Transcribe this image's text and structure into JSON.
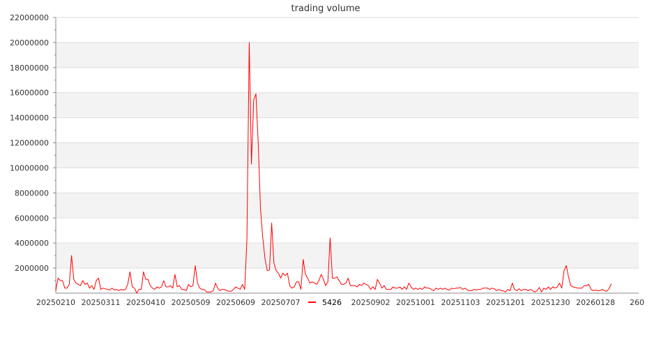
{
  "chart_data": {
    "type": "line",
    "title": "trading volume",
    "xlabel": "",
    "ylabel": "",
    "ylim": [
      0,
      22000000
    ],
    "y_ticks": [
      "2000000",
      "4000000",
      "6000000",
      "8000000",
      "10000000",
      "12000000",
      "14000000",
      "16000000",
      "18000000",
      "20000000",
      "22000000"
    ],
    "y_tick_values": [
      2000000,
      4000000,
      6000000,
      8000000,
      10000000,
      12000000,
      14000000,
      16000000,
      18000000,
      20000000,
      22000000
    ],
    "x_ticks": [
      {
        "index": 0,
        "label": "20250210"
      },
      {
        "index": 20,
        "label": "20250311"
      },
      {
        "index": 40,
        "label": "20250410"
      },
      {
        "index": 60,
        "label": "20250509"
      },
      {
        "index": 80,
        "label": "20250609"
      },
      {
        "index": 100,
        "label": "20250707"
      },
      {
        "index": 140,
        "label": "20250902"
      },
      {
        "index": 160,
        "label": "20251001"
      },
      {
        "index": 180,
        "label": "20251103"
      },
      {
        "index": 200,
        "label": "20251201"
      },
      {
        "index": 220,
        "label": "20251230"
      },
      {
        "index": 240,
        "label": "20260128"
      },
      {
        "index": 260,
        "label": "260"
      }
    ],
    "x_range": [
      0,
      259
    ],
    "grid": true,
    "band_colors": [
      "#ffffff",
      "#f3f3f3"
    ],
    "legend": {
      "position": "bottom-center",
      "entries": [
        {
          "label": "5426",
          "color": "#ff0000"
        }
      ]
    },
    "series": [
      {
        "name": "5426",
        "color": "#ff0000",
        "values": [
          200000,
          1200000,
          1000000,
          1000000,
          400000,
          400000,
          700000,
          3000000,
          1100000,
          800000,
          700000,
          600000,
          1000000,
          700000,
          800000,
          400000,
          600000,
          300000,
          1000000,
          1200000,
          300000,
          400000,
          350000,
          300000,
          250000,
          400000,
          250000,
          300000,
          200000,
          300000,
          250000,
          300000,
          700000,
          1700000,
          500000,
          400000,
          0,
          300000,
          300000,
          1700000,
          1100000,
          1100000,
          600000,
          400000,
          300000,
          500000,
          400000,
          500000,
          1000000,
          500000,
          500000,
          600000,
          400000,
          1500000,
          500000,
          600000,
          300000,
          300000,
          200000,
          700000,
          500000,
          600000,
          2200000,
          800000,
          400000,
          300000,
          300000,
          100000,
          100000,
          100000,
          200000,
          800000,
          400000,
          200000,
          300000,
          300000,
          200000,
          150000,
          150000,
          300000,
          500000,
          400000,
          300000,
          700000,
          300000,
          4300000,
          20000000,
          10300000,
          15400000,
          15900000,
          12000000,
          6800000,
          4500000,
          2800000,
          1800000,
          1850000,
          5600000,
          2400000,
          1800000,
          1600000,
          1200000,
          1600000,
          1400000,
          1600000,
          600000,
          400000,
          500000,
          900000,
          900000,
          300000,
          2700000,
          1500000,
          1200000,
          800000,
          900000,
          800000,
          700000,
          1000000,
          1500000,
          1100000,
          600000,
          900000,
          4400000,
          1200000,
          1200000,
          1300000,
          1000000,
          700000,
          700000,
          800000,
          1200000,
          600000,
          600000,
          600000,
          500000,
          700000,
          600000,
          800000,
          700000,
          600000,
          300000,
          500000,
          300000,
          1100000,
          800000,
          400000,
          600000,
          300000,
          300000,
          300000,
          500000,
          400000,
          400000,
          500000,
          300000,
          500000,
          300000,
          800000,
          500000,
          300000,
          400000,
          300000,
          400000,
          300000,
          500000,
          400000,
          400000,
          300000,
          200000,
          400000,
          300000,
          400000,
          300000,
          400000,
          300000,
          250000,
          400000,
          350000,
          400000,
          400000,
          450000,
          300000,
          400000,
          250000,
          200000,
          200000,
          300000,
          250000,
          300000,
          300000,
          400000,
          400000,
          400000,
          300000,
          400000,
          350000,
          200000,
          300000,
          200000,
          200000,
          100000,
          300000,
          200000,
          800000,
          300000,
          200000,
          350000,
          200000,
          300000,
          300000,
          200000,
          300000,
          200000,
          100000,
          200000,
          450000,
          100000,
          400000,
          300000,
          500000,
          300000,
          500000,
          400000,
          500000,
          800000,
          400000,
          1800000,
          2200000,
          1300000,
          600000,
          500000,
          450000,
          400000,
          400000,
          400000,
          600000,
          600000,
          700000,
          300000,
          200000,
          250000,
          200000,
          200000,
          300000,
          200000,
          150000,
          350000,
          750000
        ]
      }
    ]
  }
}
